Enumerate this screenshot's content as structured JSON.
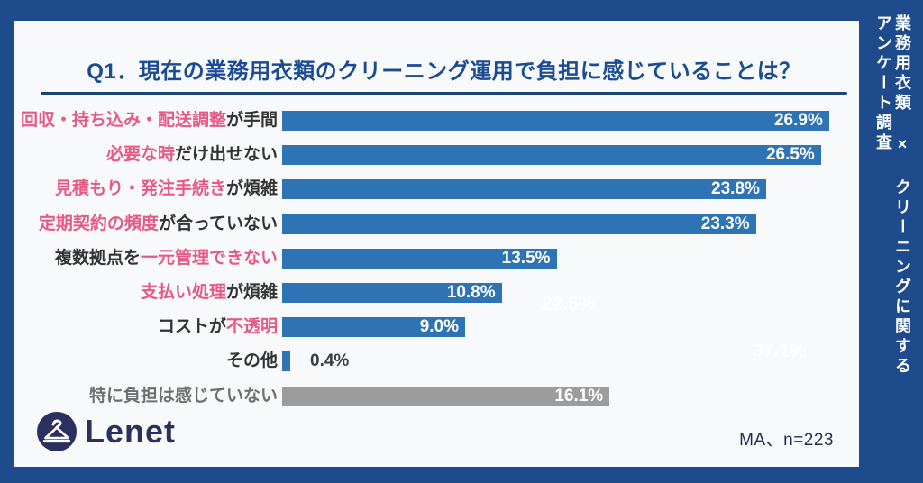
{
  "header": {
    "title": "Q1．現在の業務用衣類のクリーニング運用で負担に感じていることは？"
  },
  "side_strip": {
    "line1": "業務用衣類 × クリーニングに関する",
    "line2": "アンケート調査"
  },
  "footer": {
    "logo_text": "Lenet",
    "sample_note": "MA、n=223"
  },
  "watermarks": {
    "ghost1": "22.5%",
    "ghost2": "37.1%"
  },
  "colors": {
    "frame_blue": "#1d4b8c",
    "card_bg": "#f8f9fa",
    "bar_blue": "#2e74b5",
    "bar_gray": "#9c9c9c",
    "highlight_pink": "#e75985",
    "title_blue": "#1b4c93",
    "logo_navy": "#2b3060"
  },
  "chart_data": {
    "type": "bar",
    "orientation": "horizontal",
    "title": "Q1．現在の業務用衣類のクリーニング運用で負担に感じていることは？",
    "xlabel": "",
    "ylabel": "",
    "xlim": [
      0,
      27.5
    ],
    "grid": false,
    "note": "MA、n=223",
    "categories": [
      "回収・持ち込み・配送調整が手間",
      "必要な時だけ出せない",
      "見積もり・発注手続きが煩雑",
      "定期契約の頻度が合っていない",
      "複数拠点を一元管理できない",
      "支払い処理が煩雑",
      "コストが不透明",
      "その他",
      "特に負担は感じていない"
    ],
    "values": [
      26.9,
      26.5,
      23.8,
      23.3,
      13.5,
      10.8,
      9.0,
      0.4,
      16.1
    ],
    "rows": [
      {
        "label_parts": [
          {
            "text": "回収・持ち込み・配送調整",
            "highlight": true
          },
          {
            "text": "が手間",
            "highlight": false
          }
        ],
        "value": 26.9,
        "display": "26.9%",
        "bar_color": "blue",
        "value_outside": false,
        "label_gray": false
      },
      {
        "label_parts": [
          {
            "text": "必要な時",
            "highlight": true
          },
          {
            "text": "だけ出せない",
            "highlight": false
          }
        ],
        "value": 26.5,
        "display": "26.5%",
        "bar_color": "blue",
        "value_outside": false,
        "label_gray": false
      },
      {
        "label_parts": [
          {
            "text": "見積もり・発注手続き",
            "highlight": true
          },
          {
            "text": "が煩雑",
            "highlight": false
          }
        ],
        "value": 23.8,
        "display": "23.8%",
        "bar_color": "blue",
        "value_outside": false,
        "label_gray": false
      },
      {
        "label_parts": [
          {
            "text": "定期契約の頻度",
            "highlight": true
          },
          {
            "text": "が合っていない",
            "highlight": false
          }
        ],
        "value": 23.3,
        "display": "23.3%",
        "bar_color": "blue",
        "value_outside": false,
        "label_gray": false
      },
      {
        "label_parts": [
          {
            "text": "複数拠点を",
            "highlight": false
          },
          {
            "text": "一元管理できない",
            "highlight": true
          }
        ],
        "value": 13.5,
        "display": "13.5%",
        "bar_color": "blue",
        "value_outside": false,
        "label_gray": false
      },
      {
        "label_parts": [
          {
            "text": "支払い処理",
            "highlight": true
          },
          {
            "text": "が煩雑",
            "highlight": false
          }
        ],
        "value": 10.8,
        "display": "10.8%",
        "bar_color": "blue",
        "value_outside": false,
        "label_gray": false
      },
      {
        "label_parts": [
          {
            "text": "コストが",
            "highlight": false
          },
          {
            "text": "不透明",
            "highlight": true
          }
        ],
        "value": 9.0,
        "display": "9.0%",
        "bar_color": "blue",
        "value_outside": false,
        "label_gray": false
      },
      {
        "label_parts": [
          {
            "text": "その他",
            "highlight": false
          }
        ],
        "value": 0.4,
        "display": "0.4%",
        "bar_color": "blue",
        "value_outside": true,
        "label_gray": false
      },
      {
        "label_parts": [
          {
            "text": "特に負担は感じていない",
            "highlight": false
          }
        ],
        "value": 16.1,
        "display": "16.1%",
        "bar_color": "gray",
        "value_outside": false,
        "label_gray": true
      }
    ]
  }
}
